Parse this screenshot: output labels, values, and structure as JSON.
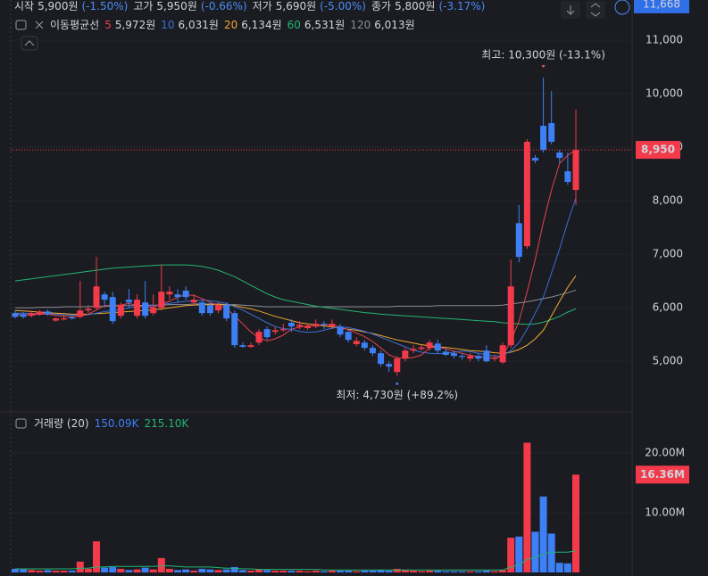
{
  "chart_data": {
    "type": "candlestick",
    "header": [
      {
        "label": "시작",
        "value": "5,900원",
        "change": "(-1.50%)"
      },
      {
        "label": "고가",
        "value": "5,950원",
        "change": "(-0.66%)"
      },
      {
        "label": "저가",
        "value": "5,690원",
        "change": "(-5.00%)"
      },
      {
        "label": "종가",
        "value": "5,800원",
        "change": "(-3.17%)"
      }
    ],
    "ma_title": "이동평균선",
    "up_color": "#f23a4a",
    "down_color": "#3d7ff5",
    "open": [
      5900,
      5880,
      5850,
      5870,
      5930,
      5760,
      5780,
      5820,
      5830,
      5950,
      6000,
      6250,
      6200,
      5850,
      6150,
      5850,
      6100,
      5900,
      6000,
      6250,
      6250,
      6320,
      6100,
      6100,
      6050,
      5950,
      6050,
      5900,
      5300,
      5270,
      5350,
      5600,
      5550,
      5580,
      5720,
      5650,
      5620,
      5650,
      5700,
      5650,
      5650,
      5550,
      5320,
      5350,
      5250,
      5150,
      4950,
      4800,
      5050,
      5200,
      5230,
      5250,
      5330,
      5180,
      5150,
      5100,
      5050,
      5100,
      5200,
      5050,
      4980,
      5300,
      7580,
      7150,
      8800,
      9400,
      9450,
      8900,
      8550,
      8200
    ],
    "high": [
      5950,
      5920,
      5950,
      5960,
      5970,
      5820,
      5860,
      5880,
      6500,
      6050,
      6950,
      6300,
      6300,
      6100,
      6350,
      6250,
      6500,
      6250,
      6800,
      6400,
      6350,
      6400,
      6250,
      6150,
      6100,
      6100,
      6100,
      5950,
      5350,
      5350,
      5600,
      5650,
      5650,
      5700,
      5780,
      5750,
      5700,
      5780,
      5750,
      5780,
      5700,
      5600,
      5450,
      5400,
      5300,
      5200,
      5000,
      5100,
      5250,
      5300,
      5300,
      5400,
      5400,
      5250,
      5200,
      5150,
      5150,
      5150,
      5300,
      5120,
      5350,
      6900,
      7920,
      9150,
      8850,
      10300,
      10050,
      8950,
      8900,
      9700
    ],
    "low": [
      5800,
      5800,
      5820,
      5850,
      5850,
      5740,
      5760,
      5780,
      5800,
      5900,
      5950,
      6000,
      5700,
      5800,
      6000,
      5800,
      5800,
      5850,
      5950,
      6150,
      6100,
      6150,
      6050,
      5850,
      5850,
      5900,
      5750,
      5250,
      5250,
      5250,
      5300,
      5400,
      5500,
      5550,
      5550,
      5600,
      5580,
      5620,
      5600,
      5600,
      5450,
      5350,
      5280,
      5200,
      5100,
      4900,
      4800,
      4730,
      5000,
      5150,
      5200,
      5200,
      5150,
      5100,
      5050,
      5030,
      5000,
      5000,
      4980,
      5000,
      4950,
      5250,
      6850,
      7100,
      8700,
      8900,
      9050,
      8700,
      8300,
      7920
    ],
    "close": [
      5830,
      5830,
      5900,
      5930,
      5880,
      5800,
      5800,
      5800,
      5950,
      5980,
      6400,
      6150,
      5750,
      6050,
      6100,
      6150,
      5850,
      6000,
      6300,
      6300,
      6200,
      6200,
      6150,
      5900,
      5900,
      6050,
      5800,
      5300,
      5270,
      5300,
      5550,
      5450,
      5580,
      5600,
      5650,
      5680,
      5660,
      5700,
      5680,
      5700,
      5500,
      5400,
      5380,
      5250,
      5150,
      4950,
      4900,
      5050,
      5200,
      5230,
      5260,
      5350,
      5200,
      5120,
      5100,
      5080,
      5100,
      5050,
      5000,
      5060,
      5300,
      6400,
      6950,
      9100,
      8750,
      8950,
      9100,
      8800,
      8350,
      8950
    ],
    "ylim": [
      4170,
      11750
    ],
    "yticks": [
      {
        "value": 5000,
        "label": "5,000"
      },
      {
        "value": 6000,
        "label": "6,000"
      },
      {
        "value": 7000,
        "label": "7,000"
      },
      {
        "value": 8000,
        "label": "8,000"
      },
      {
        "value": 9000,
        "label": "9,000"
      },
      {
        "value": 10000,
        "label": "10,000"
      },
      {
        "value": 11000,
        "label": "11,000"
      }
    ],
    "last_label": "8,950",
    "crosshair": {
      "value": 11668,
      "label": "11,668"
    },
    "high_note": "최고: 10,300원 (-13.1%)",
    "low_note": "최저: 4,730원 (+89.2%)",
    "series": [
      {
        "name": "5",
        "legend_value": "5,972원",
        "color": "#e8424f",
        "values": [
          5880,
          5870,
          5870,
          5880,
          5880,
          5860,
          5840,
          5830,
          5850,
          5880,
          5960,
          6040,
          6050,
          6050,
          6080,
          6040,
          6020,
          6010,
          6070,
          6120,
          6200,
          6240,
          6230,
          6170,
          6100,
          6040,
          5990,
          5850,
          5700,
          5550,
          5440,
          5380,
          5420,
          5490,
          5600,
          5640,
          5660,
          5670,
          5680,
          5680,
          5640,
          5590,
          5530,
          5460,
          5370,
          5250,
          5120,
          5060,
          5060,
          5070,
          5120,
          5250,
          5270,
          5230,
          5190,
          5150,
          5110,
          5090,
          5070,
          5060,
          5100,
          5380,
          5750,
          6300,
          6900,
          7600,
          8200,
          8700,
          8850,
          8950
        ]
      },
      {
        "name": "10",
        "legend_value": "6,031원",
        "color": "#3b6fd6",
        "values": [
          5900,
          5900,
          5890,
          5890,
          5890,
          5880,
          5870,
          5860,
          5860,
          5870,
          5900,
          5930,
          5950,
          5970,
          6000,
          6020,
          6030,
          6040,
          6060,
          6080,
          6100,
          6120,
          6130,
          6140,
          6130,
          6110,
          6080,
          6020,
          5960,
          5880,
          5800,
          5720,
          5650,
          5610,
          5600,
          5560,
          5540,
          5550,
          5580,
          5620,
          5640,
          5630,
          5600,
          5560,
          5510,
          5450,
          5390,
          5330,
          5270,
          5210,
          5170,
          5150,
          5140,
          5150,
          5170,
          5190,
          5180,
          5150,
          5120,
          5100,
          5100,
          5200,
          5350,
          5600,
          5900,
          6200,
          6650,
          7100,
          7600,
          8050
        ]
      },
      {
        "name": "20",
        "legend_value": "6,134원",
        "color": "#f0a930",
        "values": [
          5950,
          5940,
          5930,
          5920,
          5910,
          5900,
          5890,
          5880,
          5880,
          5880,
          5890,
          5900,
          5910,
          5920,
          5930,
          5940,
          5950,
          5960,
          5980,
          6000,
          6020,
          6040,
          6050,
          6060,
          6060,
          6060,
          6050,
          6040,
          6010,
          5980,
          5940,
          5890,
          5840,
          5800,
          5760,
          5720,
          5700,
          5680,
          5660,
          5640,
          5620,
          5600,
          5580,
          5550,
          5520,
          5480,
          5440,
          5400,
          5370,
          5340,
          5310,
          5290,
          5270,
          5260,
          5240,
          5220,
          5200,
          5190,
          5180,
          5160,
          5150,
          5170,
          5220,
          5300,
          5420,
          5580,
          5850,
          6120,
          6380,
          6600
        ]
      },
      {
        "name": "60",
        "legend_value": "6,531원",
        "color": "#22b573",
        "values": [
          6500,
          6520,
          6540,
          6560,
          6580,
          6600,
          6620,
          6640,
          6660,
          6680,
          6700,
          6720,
          6740,
          6750,
          6760,
          6770,
          6780,
          6790,
          6800,
          6800,
          6800,
          6800,
          6790,
          6770,
          6740,
          6700,
          6640,
          6580,
          6500,
          6420,
          6340,
          6260,
          6200,
          6150,
          6120,
          6090,
          6060,
          6030,
          6010,
          5990,
          5970,
          5950,
          5930,
          5910,
          5900,
          5880,
          5870,
          5860,
          5850,
          5840,
          5830,
          5820,
          5810,
          5800,
          5790,
          5780,
          5770,
          5760,
          5750,
          5740,
          5720,
          5710,
          5700,
          5690,
          5700,
          5730,
          5780,
          5840,
          5920,
          5980
        ]
      },
      {
        "name": "120",
        "legend_value": "6,013원",
        "color": "#8a8d96",
        "values": [
          6000,
          6000,
          6000,
          6010,
          6010,
          6010,
          6020,
          6020,
          6020,
          6020,
          6030,
          6030,
          6030,
          6040,
          6040,
          6040,
          6050,
          6050,
          6050,
          6060,
          6060,
          6060,
          6070,
          6070,
          6070,
          6070,
          6060,
          6060,
          6050,
          6040,
          6030,
          6020,
          6020,
          6020,
          6020,
          6020,
          6020,
          6020,
          6020,
          6020,
          6020,
          6020,
          6020,
          6020,
          6020,
          6020,
          6020,
          6030,
          6030,
          6030,
          6030,
          6030,
          6040,
          6040,
          6040,
          6040,
          6040,
          6040,
          6040,
          6040,
          6050,
          6070,
          6090,
          6110,
          6140,
          6170,
          6200,
          6240,
          6280,
          6330
        ]
      }
    ],
    "volume": {
      "title": "거래량 (20)",
      "legend": [
        {
          "text": "150.09K",
          "color": "#3d7ff5"
        },
        {
          "text": "215.10K",
          "color": "#22b573"
        }
      ],
      "values": [
        0.6,
        0.5,
        0.4,
        0.3,
        0.4,
        0.3,
        0.3,
        0.3,
        1.8,
        0.6,
        5.2,
        0.8,
        0.9,
        0.6,
        0.4,
        0.5,
        0.8,
        0.5,
        2.4,
        0.6,
        0.4,
        0.5,
        0.3,
        0.6,
        0.5,
        0.4,
        0.5,
        0.9,
        0.4,
        0.3,
        0.5,
        0.4,
        0.3,
        0.3,
        0.3,
        0.3,
        0.2,
        0.3,
        0.2,
        0.3,
        0.3,
        0.3,
        0.2,
        0.3,
        0.3,
        0.4,
        0.3,
        0.6,
        0.4,
        0.3,
        0.2,
        0.3,
        0.3,
        0.2,
        0.2,
        0.2,
        0.2,
        0.2,
        0.3,
        0.2,
        0.4,
        5.8,
        6.0,
        21.7,
        6.8,
        12.7,
        6.5,
        1.6,
        1.5,
        16.36
      ],
      "ma_color": "#22b573",
      "ma_values": [
        0.6,
        0.6,
        0.6,
        0.6,
        0.6,
        0.6,
        0.6,
        0.6,
        0.7,
        0.7,
        0.9,
        0.9,
        1.0,
        1.0,
        1.0,
        1.0,
        1.0,
        1.0,
        1.1,
        1.1,
        1.0,
        0.9,
        0.9,
        0.9,
        0.9,
        0.8,
        0.7,
        0.7,
        0.6,
        0.6,
        0.5,
        0.5,
        0.5,
        0.5,
        0.5,
        0.5,
        0.5,
        0.5,
        0.4,
        0.4,
        0.4,
        0.4,
        0.4,
        0.4,
        0.4,
        0.4,
        0.4,
        0.4,
        0.4,
        0.4,
        0.4,
        0.4,
        0.4,
        0.4,
        0.4,
        0.4,
        0.4,
        0.4,
        0.4,
        0.4,
        0.4,
        0.9,
        1.2,
        2.2,
        2.5,
        3.1,
        3.4,
        3.4,
        3.4,
        3.6
      ],
      "ylim": [
        -0.6,
        26.4
      ],
      "yticks": [
        {
          "value": 10,
          "label": "10.00M"
        },
        {
          "value": 20,
          "label": "20.00M"
        }
      ],
      "last_label": "16.36M"
    }
  }
}
